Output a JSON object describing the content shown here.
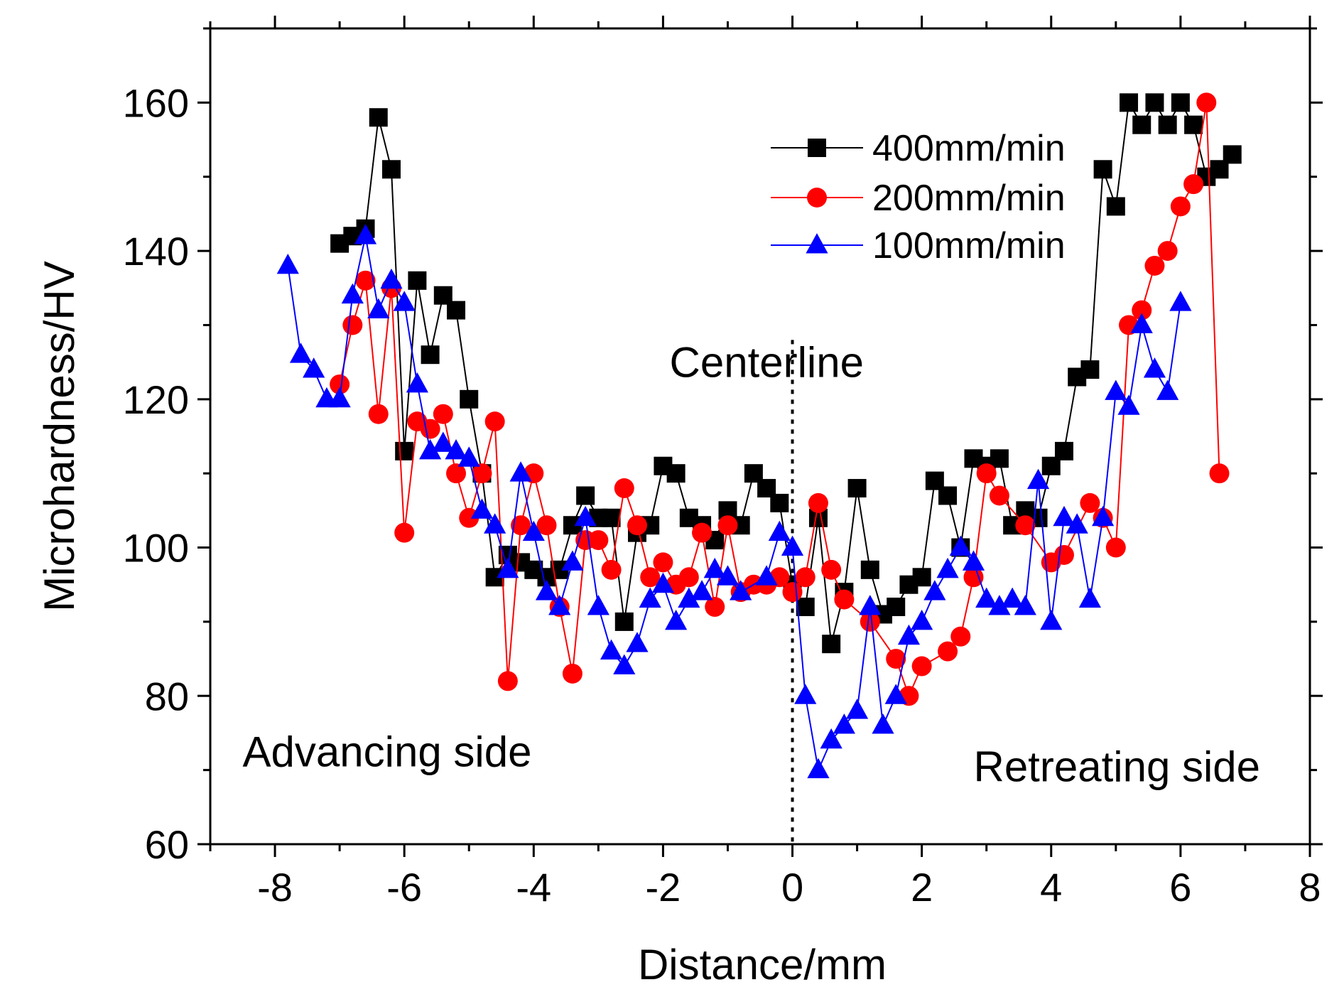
{
  "chart_data": {
    "type": "line",
    "xlabel": "Distance/mm",
    "ylabel": "Microhardness/HV",
    "xlim": [
      -9,
      8
    ],
    "ylim": [
      60,
      170
    ],
    "x_ticks": [
      -8,
      -6,
      -4,
      -2,
      0,
      2,
      4,
      6,
      8
    ],
    "x_tick_labels": [
      "-8",
      "-6",
      "-4",
      "-2",
      "0",
      "2",
      "4",
      "6",
      "8"
    ],
    "y_ticks": [
      60,
      80,
      100,
      120,
      140,
      160
    ],
    "y_tick_labels": [
      "60",
      "80",
      "100",
      "120",
      "140",
      "160"
    ],
    "grid": false,
    "legend_position": "top-right",
    "annotations": [
      {
        "id": "centerline",
        "text": "Centerline",
        "x": -1.9,
        "y": 123
      },
      {
        "id": "advancing",
        "text": "Advancing side",
        "x": -8.5,
        "y": 70.5
      },
      {
        "id": "retreating",
        "text": "Retreating side",
        "x": 2.8,
        "y": 68.5
      }
    ],
    "reference_lines": [
      {
        "type": "vertical",
        "x": 0,
        "style": "dotted",
        "y_range": [
          60,
          128
        ]
      }
    ],
    "series": [
      {
        "name": "400mm/min",
        "color": "#000000",
        "marker": "square",
        "points": [
          [
            -7.0,
            141
          ],
          [
            -6.8,
            142
          ],
          [
            -6.6,
            143
          ],
          [
            -6.4,
            158
          ],
          [
            -6.2,
            151
          ],
          [
            -6.0,
            113
          ],
          [
            -5.8,
            136
          ],
          [
            -5.6,
            126
          ],
          [
            -5.4,
            134
          ],
          [
            -5.2,
            132
          ],
          [
            -5.0,
            120
          ],
          [
            -4.8,
            110
          ],
          [
            -4.6,
            96
          ],
          [
            -4.4,
            99
          ],
          [
            -4.2,
            98
          ],
          [
            -4.0,
            97
          ],
          [
            -3.8,
            96
          ],
          [
            -3.6,
            97
          ],
          [
            -3.4,
            103
          ],
          [
            -3.2,
            107
          ],
          [
            -3.0,
            104
          ],
          [
            -2.8,
            104
          ],
          [
            -2.6,
            90
          ],
          [
            -2.4,
            102
          ],
          [
            -2.2,
            103
          ],
          [
            -2.0,
            111
          ],
          [
            -1.8,
            110
          ],
          [
            -1.6,
            104
          ],
          [
            -1.4,
            103
          ],
          [
            -1.2,
            101
          ],
          [
            -1.0,
            105
          ],
          [
            -0.8,
            103
          ],
          [
            -0.6,
            110
          ],
          [
            -0.4,
            108
          ],
          [
            -0.2,
            106
          ],
          [
            0.0,
            95
          ],
          [
            0.2,
            92
          ],
          [
            0.4,
            104
          ],
          [
            0.6,
            87
          ],
          [
            0.8,
            94
          ],
          [
            1.0,
            108
          ],
          [
            1.2,
            97
          ],
          [
            1.4,
            91
          ],
          [
            1.6,
            92
          ],
          [
            1.8,
            95
          ],
          [
            2.0,
            96
          ],
          [
            2.2,
            109
          ],
          [
            2.4,
            107
          ],
          [
            2.6,
            100
          ],
          [
            2.8,
            112
          ],
          [
            3.0,
            111
          ],
          [
            3.2,
            112
          ],
          [
            3.4,
            103
          ],
          [
            3.6,
            105
          ],
          [
            3.8,
            104
          ],
          [
            4.0,
            111
          ],
          [
            4.2,
            113
          ],
          [
            4.4,
            123
          ],
          [
            4.6,
            124
          ],
          [
            4.8,
            151
          ],
          [
            5.0,
            146
          ],
          [
            5.2,
            160
          ],
          [
            5.4,
            157
          ],
          [
            5.6,
            160
          ],
          [
            5.8,
            157
          ],
          [
            6.0,
            160
          ],
          [
            6.2,
            157
          ],
          [
            6.4,
            150
          ],
          [
            6.6,
            151
          ],
          [
            6.8,
            153
          ]
        ]
      },
      {
        "name": "200mm/min",
        "color": "#ff0000",
        "marker": "circle",
        "points": [
          [
            -7.0,
            122
          ],
          [
            -6.8,
            130
          ],
          [
            -6.6,
            136
          ],
          [
            -6.4,
            118
          ],
          [
            -6.2,
            135
          ],
          [
            -6.0,
            102
          ],
          [
            -5.8,
            117
          ],
          [
            -5.6,
            116
          ],
          [
            -5.4,
            118
          ],
          [
            -5.2,
            110
          ],
          [
            -5.0,
            104
          ],
          [
            -4.8,
            110
          ],
          [
            -4.6,
            117
          ],
          [
            -4.4,
            82
          ],
          [
            -4.2,
            103
          ],
          [
            -4.0,
            110
          ],
          [
            -3.8,
            103
          ],
          [
            -3.6,
            92
          ],
          [
            -3.4,
            83
          ],
          [
            -3.2,
            101
          ],
          [
            -3.0,
            101
          ],
          [
            -2.8,
            97
          ],
          [
            -2.6,
            108
          ],
          [
            -2.4,
            103
          ],
          [
            -2.2,
            96
          ],
          [
            -2.0,
            98
          ],
          [
            -1.8,
            95
          ],
          [
            -1.6,
            96
          ],
          [
            -1.4,
            102
          ],
          [
            -1.2,
            92
          ],
          [
            -1.0,
            103
          ],
          [
            -0.8,
            94
          ],
          [
            -0.6,
            95
          ],
          [
            -0.4,
            95
          ],
          [
            -0.2,
            96
          ],
          [
            0.0,
            94
          ],
          [
            0.2,
            96
          ],
          [
            0.4,
            106
          ],
          [
            0.6,
            97
          ],
          [
            0.8,
            93
          ],
          [
            1.2,
            90
          ],
          [
            1.6,
            85
          ],
          [
            1.8,
            80
          ],
          [
            2.0,
            84
          ],
          [
            2.4,
            86
          ],
          [
            2.6,
            88
          ],
          [
            2.8,
            96
          ],
          [
            3.0,
            110
          ],
          [
            3.2,
            107
          ],
          [
            3.6,
            103
          ],
          [
            4.0,
            98
          ],
          [
            4.2,
            99
          ],
          [
            4.6,
            106
          ],
          [
            4.8,
            104
          ],
          [
            5.0,
            100
          ],
          [
            5.2,
            130
          ],
          [
            5.4,
            132
          ],
          [
            5.6,
            138
          ],
          [
            5.8,
            140
          ],
          [
            6.0,
            146
          ],
          [
            6.2,
            149
          ],
          [
            6.4,
            160
          ],
          [
            6.6,
            110
          ]
        ]
      },
      {
        "name": "100mm/min",
        "color": "#0000ff",
        "marker": "triangle",
        "points": [
          [
            -7.8,
            138
          ],
          [
            -7.6,
            126
          ],
          [
            -7.4,
            124
          ],
          [
            -7.2,
            120
          ],
          [
            -7.0,
            120
          ],
          [
            -6.8,
            134
          ],
          [
            -6.6,
            142
          ],
          [
            -6.4,
            132
          ],
          [
            -6.2,
            136
          ],
          [
            -6.0,
            133
          ],
          [
            -5.8,
            122
          ],
          [
            -5.6,
            113
          ],
          [
            -5.4,
            114
          ],
          [
            -5.2,
            113
          ],
          [
            -5.0,
            112
          ],
          [
            -4.8,
            105
          ],
          [
            -4.6,
            103
          ],
          [
            -4.4,
            97
          ],
          [
            -4.2,
            110
          ],
          [
            -4.0,
            102
          ],
          [
            -3.8,
            94
          ],
          [
            -3.6,
            92
          ],
          [
            -3.4,
            98
          ],
          [
            -3.2,
            104
          ],
          [
            -3.0,
            92
          ],
          [
            -2.8,
            86
          ],
          [
            -2.6,
            84
          ],
          [
            -2.4,
            87
          ],
          [
            -2.2,
            93
          ],
          [
            -2.0,
            95
          ],
          [
            -1.8,
            90
          ],
          [
            -1.6,
            93
          ],
          [
            -1.4,
            94
          ],
          [
            -1.2,
            97
          ],
          [
            -1.0,
            96
          ],
          [
            -0.8,
            94
          ],
          [
            -0.4,
            96
          ],
          [
            -0.2,
            102
          ],
          [
            0.0,
            100
          ],
          [
            0.2,
            80
          ],
          [
            0.4,
            70
          ],
          [
            0.6,
            74
          ],
          [
            0.8,
            76
          ],
          [
            1.0,
            78
          ],
          [
            1.2,
            92
          ],
          [
            1.4,
            76
          ],
          [
            1.6,
            80
          ],
          [
            1.8,
            88
          ],
          [
            2.0,
            90
          ],
          [
            2.2,
            94
          ],
          [
            2.4,
            97
          ],
          [
            2.6,
            100
          ],
          [
            2.8,
            98
          ],
          [
            3.0,
            93
          ],
          [
            3.2,
            92
          ],
          [
            3.4,
            93
          ],
          [
            3.6,
            92
          ],
          [
            3.8,
            109
          ],
          [
            4.0,
            90
          ],
          [
            4.2,
            104
          ],
          [
            4.4,
            103
          ],
          [
            4.6,
            93
          ],
          [
            4.8,
            104
          ],
          [
            5.0,
            121
          ],
          [
            5.2,
            119
          ],
          [
            5.4,
            130
          ],
          [
            5.6,
            124
          ],
          [
            5.8,
            121
          ],
          [
            6.0,
            133
          ]
        ]
      }
    ]
  }
}
